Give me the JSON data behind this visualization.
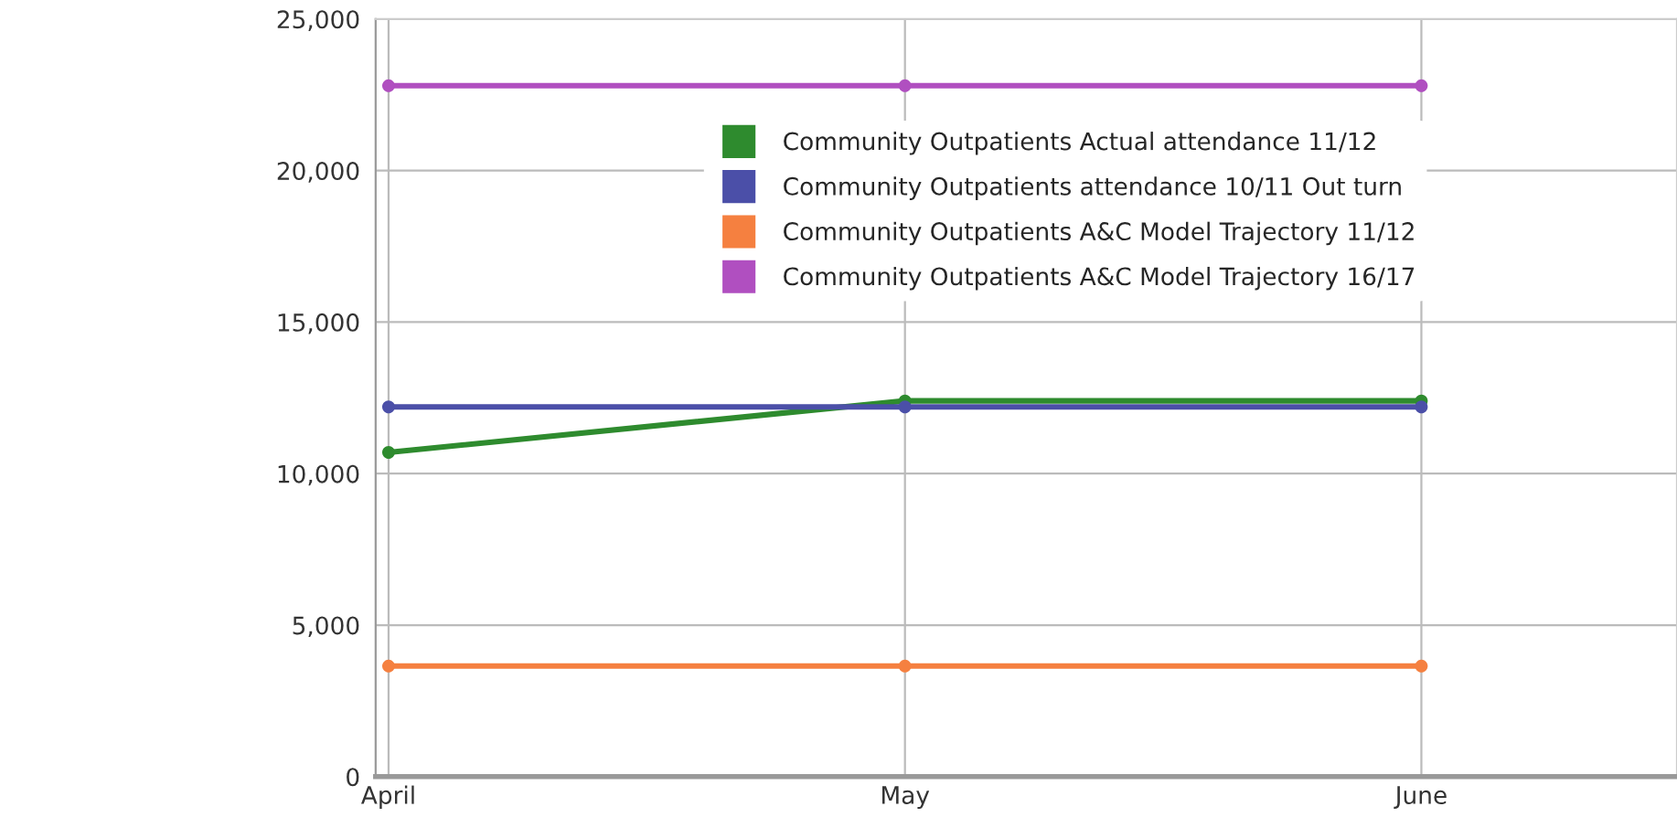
{
  "chart_data": {
    "type": "line",
    "categories": [
      "April",
      "May",
      "June"
    ],
    "series": [
      {
        "name": "Community Outpatients Actual attendance 11/12",
        "color": "#2e8b2e",
        "values": [
          10700,
          12400,
          12400
        ]
      },
      {
        "name": "Community Outpatients attendance 10/11 Out turn",
        "color": "#4b4fa8",
        "values": [
          12200,
          12200,
          12200
        ]
      },
      {
        "name": "Community Outpatients A&C Model Trajectory 11/12",
        "color": "#f58040",
        "values": [
          3650,
          3650,
          3650
        ]
      },
      {
        "name": "Community Outpatients A&C Model Trajectory 16/17",
        "color": "#b04fc0",
        "values": [
          22800,
          22800,
          22800
        ]
      }
    ],
    "ylim": [
      0,
      25000
    ],
    "yticks": [
      {
        "value": 0,
        "label": "0"
      },
      {
        "value": 5000,
        "label": "5,000"
      },
      {
        "value": 10000,
        "label": "10,000"
      },
      {
        "value": 15000,
        "label": "15,000"
      },
      {
        "value": 20000,
        "label": "20,000"
      },
      {
        "value": 25000,
        "label": "25,000"
      }
    ],
    "grid": true,
    "legend": "top",
    "marker": "circle",
    "line_style": "solid"
  }
}
